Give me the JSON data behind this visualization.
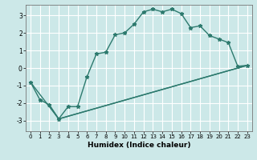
{
  "xlabel": "Humidex (Indice chaleur)",
  "bg_color": "#cce8e8",
  "grid_color": "#ffffff",
  "line_color": "#2d7a6e",
  "xlim": [
    -0.5,
    23.5
  ],
  "ylim": [
    -3.6,
    3.6
  ],
  "xticks": [
    0,
    1,
    2,
    3,
    4,
    5,
    6,
    7,
    8,
    9,
    10,
    11,
    12,
    13,
    14,
    15,
    16,
    17,
    18,
    19,
    20,
    21,
    22,
    23
  ],
  "yticks": [
    -3,
    -2,
    -1,
    0,
    1,
    2,
    3
  ],
  "line1_x": [
    0,
    1,
    2,
    3,
    4,
    5,
    6,
    7,
    8,
    9,
    10,
    11,
    12,
    13,
    14,
    15,
    16,
    17,
    18,
    19,
    20,
    21,
    22,
    23
  ],
  "line1_y": [
    -0.8,
    -1.8,
    -2.1,
    -2.9,
    -2.2,
    -2.2,
    -0.5,
    0.8,
    0.9,
    1.9,
    2.0,
    2.5,
    3.2,
    3.35,
    3.2,
    3.35,
    3.1,
    2.3,
    2.4,
    1.85,
    1.65,
    1.45,
    0.1,
    0.15
  ],
  "line2_x": [
    0,
    3,
    23
  ],
  "line2_y": [
    -0.8,
    -2.9,
    0.15
  ],
  "line3_x": [
    2,
    3,
    23
  ],
  "line3_y": [
    -2.1,
    -2.9,
    0.15
  ],
  "marker": "*",
  "markersize": 3.5,
  "linewidth": 1.0,
  "tick_fontsize": 5.0,
  "xlabel_fontsize": 6.5
}
